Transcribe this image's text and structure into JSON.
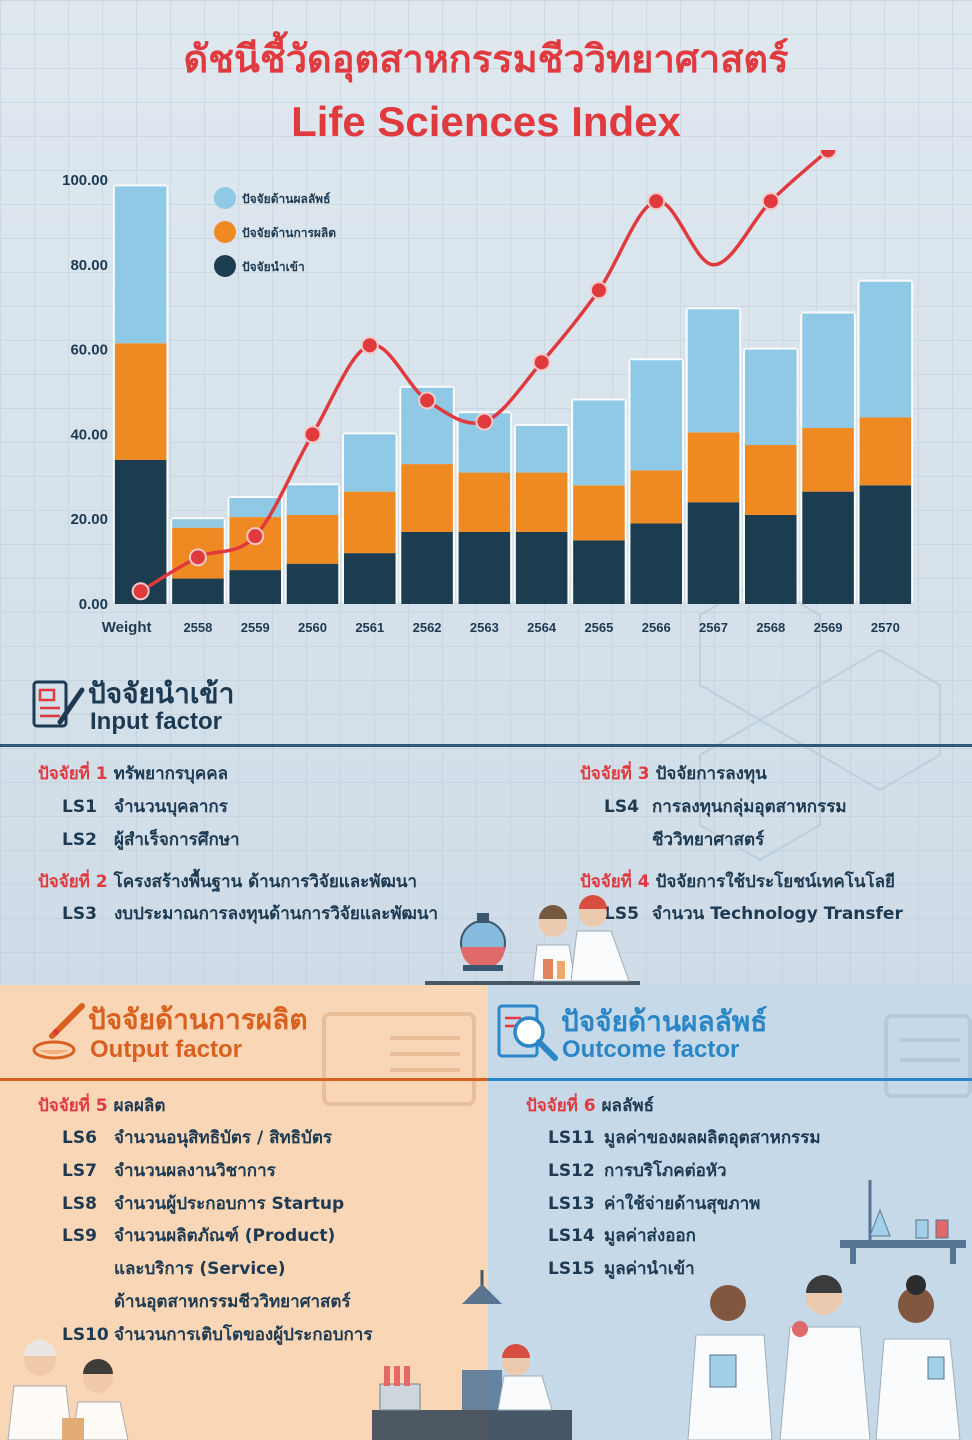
{
  "title": {
    "thai": "ดัชนีชี้วัดอุตสาหกรรมชีววิทยาศาสตร์",
    "english": "Life Sciences Index"
  },
  "chart_data": {
    "type": "bar",
    "stacked": true,
    "categories": [
      "Weight",
      "2558",
      "2559",
      "2560",
      "2561",
      "2562",
      "2563",
      "2564",
      "2565",
      "2566",
      "2567",
      "2568",
      "2569",
      "2570"
    ],
    "y_ticks": [
      "0.00",
      "20.00",
      "40.00",
      "60.00",
      "80.00",
      "100.00"
    ],
    "ylim": [
      0,
      100
    ],
    "legend_placement": "top-left",
    "series": [
      {
        "name": "ปัจจัยนำเข้า",
        "color": "#1c3d4f",
        "values": [
          34,
          6,
          8,
          9.5,
          12,
          17,
          17,
          17,
          15,
          19,
          24,
          21,
          26.5,
          28
        ]
      },
      {
        "name": "ปัจจัยด้านการผลิต",
        "color": "#ef8a22",
        "values": [
          27.5,
          12,
          12.5,
          11.5,
          14.5,
          16,
          14,
          14,
          13,
          12.5,
          16.5,
          16.5,
          15,
          16
        ]
      },
      {
        "name": "ปัจจัยด้านผลลัพธ์",
        "color": "#90c9e6",
        "values": [
          37,
          2,
          4.5,
          7,
          13.5,
          18,
          14,
          11,
          20,
          26,
          29,
          22.5,
          27,
          32
        ]
      }
    ],
    "line": {
      "color": "#e0393e",
      "values": [
        3,
        11,
        16,
        40,
        61,
        48,
        43,
        57,
        74,
        95,
        80,
        95,
        107
      ]
    }
  },
  "input_section": {
    "title_th": "ปัจจัยนำเข้า",
    "title_en": "Input factor",
    "factors": [
      {
        "label": "ปัจจัยที่ 1",
        "name": "ทรัพยากรบุคคล",
        "items": [
          {
            "code": "LS1",
            "text": "จำนวนบุคลากร"
          },
          {
            "code": "LS2",
            "text": "ผู้สำเร็จการศึกษา"
          }
        ]
      },
      {
        "label": "ปัจจัยที่ 2",
        "name": "โครงสร้างพื้นฐาน ด้านการวิจัยและพัฒนา",
        "items": [
          {
            "code": "LS3",
            "text": "งบประมาณการลงทุนด้านการวิจัยและพัฒนา"
          }
        ]
      },
      {
        "label": "ปัจจัยที่ 3",
        "name": "ปัจจัยการลงทุน",
        "items": [
          {
            "code": "LS4",
            "text": "การลงทุนกลุ่มอุตสาหกรรม",
            "text2": "ชีววิทยาศาสตร์"
          }
        ]
      },
      {
        "label": "ปัจจัยที่ 4",
        "name": "ปัจจัยการใช้ประโยชน์เทคโนโลยี",
        "items": [
          {
            "code": "LS5",
            "text": "จำนวน Technology Transfer"
          }
        ]
      }
    ]
  },
  "output_section": {
    "title_th": "ปัจจัยด้านการผลิต",
    "title_en": "Output factor",
    "factor_label": "ปัจจัยที่ 5",
    "factor_name": "ผลผลิต",
    "items": [
      {
        "code": "LS6",
        "text": "จำนวนอนุสิทธิบัตร / สิทธิบัตร"
      },
      {
        "code": "LS7",
        "text": "จำนวนผลงานวิชาการ"
      },
      {
        "code": "LS8",
        "text": "จำนวนผู้ประกอบการ Startup"
      },
      {
        "code": "LS9",
        "text": "จำนวนผลิตภัณฑ์ (Product)",
        "text2": "และบริการ (Service)",
        "text3": "ด้านอุตสาหกรรมชีววิทยาศาสตร์"
      },
      {
        "code": "LS10",
        "text": "จำนวนการเติบโตของผู้ประกอบการ"
      }
    ]
  },
  "outcome_section": {
    "title_th": "ปัจจัยด้านผลลัพธ์",
    "title_en": "Outcome factor",
    "factor_label": "ปัจจัยที่ 6",
    "factor_name": "ผลลัพธ์",
    "items": [
      {
        "code": "LS11",
        "text": "มูลค่าของผลผลิตอุตสาหกรรม"
      },
      {
        "code": "LS12",
        "text": "การบริโภคต่อหัว"
      },
      {
        "code": "LS13",
        "text": "ค่าใช้จ่ายด้านสุขภาพ"
      },
      {
        "code": "LS14",
        "text": "มูลค่าส่งออก"
      },
      {
        "code": "LS15",
        "text": "มูลค่านำเข้า"
      }
    ]
  },
  "colors": {
    "accent_red": "#e0393e",
    "navy": "#1d3a52",
    "orange": "#d9601e",
    "blue": "#2a86c6",
    "output_bg": "#f9d7b6",
    "outcome_bg": "#c6d9e8"
  }
}
